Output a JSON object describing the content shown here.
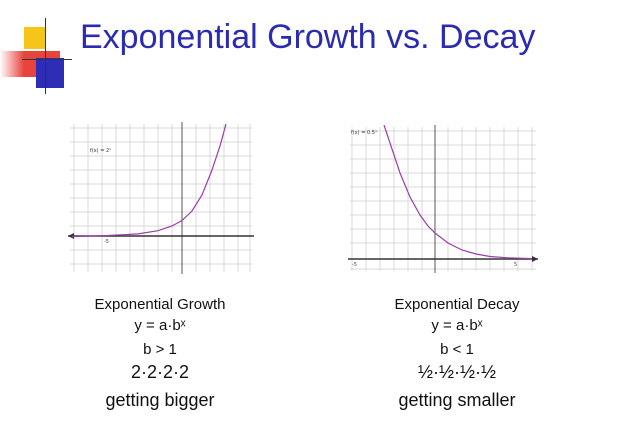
{
  "slide": {
    "title": "Exponential Growth vs. Decay",
    "colors": {
      "title": "#2b2bb0",
      "accent_yellow": "#f5c518",
      "accent_red": "#e2231a",
      "accent_blue": "#2d2db6",
      "curve": "#9a3ea8"
    }
  },
  "left": {
    "caption_title": "Exponential Growth",
    "formula": "y = a·bˣ",
    "condition": "b > 1",
    "example": "2·2·2·2",
    "description": "getting bigger",
    "graph_label": "f(x) = 2ˣ"
  },
  "right": {
    "caption_title": "Exponential Decay",
    "formula": "y = a·bˣ",
    "condition": "b < 1",
    "example": "½·½·½·½",
    "description": "getting smaller",
    "graph_label": "f(x) = 0.5ˣ"
  }
}
